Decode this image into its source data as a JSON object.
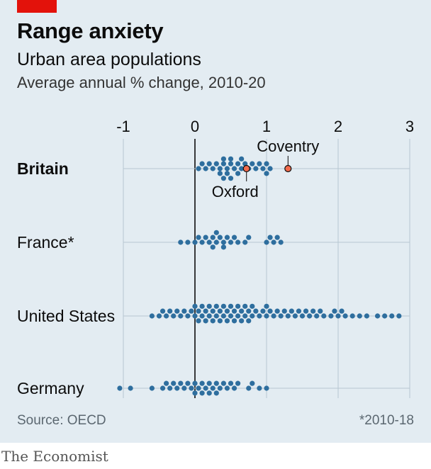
{
  "header": {
    "title": "Range anxiety",
    "subtitle": "Urban area populations",
    "unit": "Average annual % change, 2010-20"
  },
  "footer": {
    "source": "Source: OECD",
    "footnote": "*2010-18",
    "brand": "The Economist"
  },
  "colors": {
    "accent_red": "#e3120b",
    "dot_blue": "#2e6e9e",
    "highlight_orange": "#f26b4d",
    "background": "#e3ecf2"
  },
  "chart_data": {
    "type": "scatter",
    "subtype": "beeswarm",
    "xlim": [
      -1,
      3
    ],
    "x_ticks": [
      "-1",
      "0",
      "1",
      "2",
      "3"
    ],
    "tick_values": [
      -1,
      0,
      1,
      2,
      3
    ],
    "rows": [
      {
        "label": "Britain",
        "bold": true,
        "values": [
          0.05,
          0.1,
          0.15,
          0.2,
          0.25,
          0.3,
          0.35,
          0.35,
          0.4,
          0.4,
          0.4,
          0.45,
          0.45,
          0.5,
          0.5,
          0.5,
          0.55,
          0.6,
          0.6,
          0.65,
          0.65,
          0.7,
          0.75,
          0.8,
          0.85,
          0.9,
          0.95,
          1.0,
          1.0,
          1.05
        ]
      },
      {
        "label": "France*",
        "bold": false,
        "values": [
          -0.2,
          -0.1,
          0.0,
          0.05,
          0.1,
          0.15,
          0.2,
          0.25,
          0.25,
          0.3,
          0.3,
          0.35,
          0.4,
          0.4,
          0.45,
          0.5,
          0.55,
          0.6,
          0.7,
          0.75,
          1.0,
          1.05,
          1.1,
          1.15,
          1.2
        ]
      },
      {
        "label": "United States",
        "bold": false,
        "values": [
          -0.6,
          -0.5,
          -0.45,
          -0.4,
          -0.35,
          -0.3,
          -0.25,
          -0.2,
          -0.15,
          -0.1,
          -0.05,
          0.0,
          0.0,
          0.05,
          0.05,
          0.1,
          0.1,
          0.15,
          0.15,
          0.2,
          0.2,
          0.25,
          0.25,
          0.3,
          0.3,
          0.35,
          0.35,
          0.4,
          0.4,
          0.45,
          0.45,
          0.5,
          0.5,
          0.55,
          0.55,
          0.6,
          0.6,
          0.65,
          0.65,
          0.7,
          0.7,
          0.75,
          0.75,
          0.8,
          0.8,
          0.85,
          0.9,
          0.95,
          1.0,
          1.0,
          1.05,
          1.1,
          1.15,
          1.2,
          1.25,
          1.3,
          1.35,
          1.4,
          1.45,
          1.5,
          1.55,
          1.6,
          1.65,
          1.7,
          1.75,
          1.8,
          1.9,
          1.95,
          2.0,
          2.05,
          2.1,
          2.2,
          2.3,
          2.4,
          2.55,
          2.65,
          2.75,
          2.85
        ]
      },
      {
        "label": "Germany",
        "bold": false,
        "values": [
          -1.05,
          -0.9,
          -0.6,
          -0.45,
          -0.4,
          -0.35,
          -0.3,
          -0.25,
          -0.2,
          -0.15,
          -0.1,
          -0.05,
          0.0,
          0.0,
          0.05,
          0.1,
          0.1,
          0.15,
          0.2,
          0.2,
          0.25,
          0.3,
          0.3,
          0.35,
          0.4,
          0.45,
          0.5,
          0.55,
          0.6,
          0.75,
          0.8,
          0.9,
          1.0
        ]
      }
    ],
    "annotations": [
      {
        "row": "Britain",
        "label": "Oxford",
        "value": 0.72,
        "position": "below"
      },
      {
        "row": "Britain",
        "label": "Coventry",
        "value": 1.3,
        "position": "above"
      }
    ]
  }
}
